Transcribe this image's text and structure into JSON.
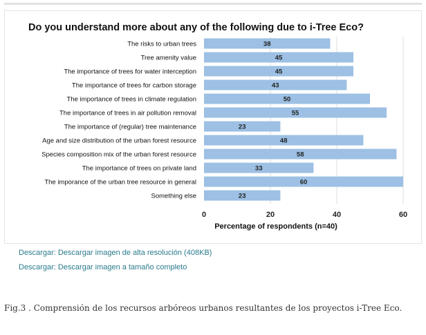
{
  "chart_data": {
    "type": "bar",
    "orientation": "horizontal",
    "title": "Do you understand more about any of the following due to i-Tree Eco?",
    "xlabel": "Percentage of respondents (n=40)",
    "ylabel": "",
    "xlim": [
      0,
      60
    ],
    "xticks": [
      "0",
      "20",
      "40",
      "60"
    ],
    "grid": true,
    "bar_color": "#9dc0e4",
    "categories": [
      "The risks to urban trees",
      "Tree amenity value",
      "The importance of trees for water interception",
      "The importance of trees for carbon storage",
      "The importance of trees in climate regulation",
      "The importance of trees in air pollution removal",
      "The importance of (regular) tree maintenance",
      "Age and size distribution of the urban forest resource",
      "Species composition mix of the urban forest resource",
      "The importance of trees on private land",
      "The imporance of the urban tree resource in general",
      "Something else"
    ],
    "values": [
      38,
      45,
      45,
      43,
      50,
      55,
      23,
      48,
      58,
      33,
      60,
      23
    ]
  },
  "links": [
    "Descargar: Descargar imagen de alta resolución (408KB)",
    "Descargar: Descargar imagen a tamaño completo"
  ],
  "caption": "Fig.3 . Comprensión de los recursos arbóreos urbanos resultantes de los proyectos i-Tree Eco."
}
